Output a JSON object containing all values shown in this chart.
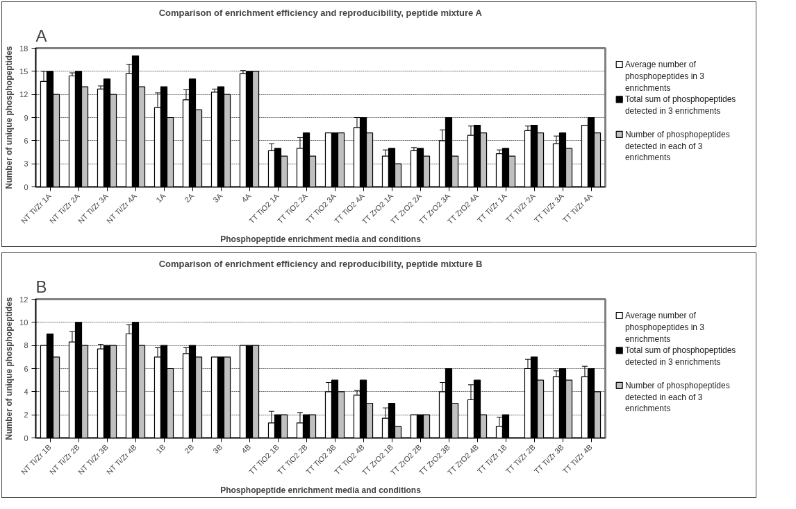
{
  "chart_data": [
    {
      "type": "bar",
      "title": "Comparison of enrichment efficiency and reproducibility, peptide mixture A",
      "xlabel": "Phosphopeptide enrichment media and conditions",
      "ylabel": "Number of unique phosphopeptides",
      "annotations": [
        "A"
      ],
      "categories": [
        "NT Ti/Zr 1A",
        "NT Ti/Zr 2A",
        "NT Ti/Zr 3A",
        "NT Ti/Zr 4A",
        "1A",
        "2A",
        "3A",
        "4A",
        "TT TiO2 1A",
        "TT TiO2 2A",
        "TT TiO2 3A",
        "TT TiO2 4A",
        "TT ZrO2 1A",
        "TT ZrO2 2A",
        "TT ZrO2 3A",
        "TT ZrO2 4A",
        "TT Ti/Zr 1A",
        "TT Ti/Zr 2A",
        "TT Ti/Zr 3A",
        "TT Ti/Zr 4A"
      ],
      "series": [
        {
          "name": "Average number of phosphopeptides in 3 enrichments",
          "color": "#ffffff",
          "values": [
            13.7,
            14.4,
            12.7,
            14.7,
            10.3,
            11.3,
            12.3,
            14.7,
            4.7,
            5.0,
            7,
            7.7,
            4.0,
            4.7,
            6.0,
            6.7,
            4.3,
            7.3,
            5.6,
            8.0
          ],
          "errors": [
            [
              13.7,
              15.0
            ],
            [
              14.4,
              14.8
            ],
            [
              12.7,
              13.1
            ],
            [
              14.7,
              15.9
            ],
            [
              10.3,
              12.2
            ],
            [
              11.3,
              12.6
            ],
            [
              12.3,
              12.7
            ],
            [
              14.7,
              15.1
            ],
            [
              4.7,
              5.6
            ],
            [
              5.0,
              6.4
            ],
            null,
            [
              7.7,
              9.0
            ],
            [
              4.0,
              4.8
            ],
            [
              4.7,
              5.1
            ],
            [
              6.0,
              7.4
            ],
            [
              6.7,
              7.9
            ],
            [
              4.3,
              4.8
            ],
            [
              7.3,
              7.9
            ],
            [
              5.6,
              6.6
            ],
            null
          ]
        },
        {
          "name": "Total sum of phosphopeptides detected in 3 enrichments",
          "color": "#000000",
          "values": [
            15,
            15,
            14,
            17,
            13,
            14,
            13,
            15,
            5,
            7,
            7,
            9,
            5,
            5,
            9,
            8,
            5,
            8,
            7,
            9
          ]
        },
        {
          "name": "Number of phosphopeptides detected in each of 3 enrichments",
          "color": "#c0c0c0",
          "values": [
            12,
            13,
            12,
            13,
            9,
            10,
            12,
            15,
            4,
            4,
            7,
            7,
            3,
            4,
            4,
            7,
            4,
            7,
            5,
            7
          ]
        }
      ],
      "ylim": [
        0,
        18
      ],
      "yticks": [
        0,
        3,
        6,
        9,
        12,
        15,
        18
      ],
      "grid": "y",
      "legend": "right"
    },
    {
      "type": "bar",
      "title": "Comparison of enrichment efficiency and reproducibility, peptide mixture B",
      "xlabel": "Phosphopeptide enrichment media and conditions",
      "ylabel": "Number of unique phosphopeptides",
      "annotations": [
        "B"
      ],
      "categories": [
        "NT Ti/Zr 1B",
        "NT Ti/Zr 2B",
        "NT Ti/Zr 3B",
        "NT Ti/Zr 4B",
        "1B",
        "2B",
        "3B",
        "4B",
        "TT TiO2 1B",
        "TT TiO2 2B",
        "TT TiO2 3B",
        "TT TiO2 4B",
        "TT ZrO2 1B",
        "TT ZrO2 2B",
        "TT ZrO2 3B",
        "TT ZrO2 4B",
        "TT Ti/Zr 1B",
        "TT Ti/Zr 2B",
        "TT Ti/Zr 3B",
        "TT Ti/Zr 4B"
      ],
      "series": [
        {
          "name": "Average number of phosphopeptides in 3 enrichments",
          "color": "#ffffff",
          "values": [
            8,
            8.3,
            7.7,
            9.0,
            7.0,
            7.3,
            7,
            8,
            1.3,
            1.3,
            4.0,
            3.7,
            1.7,
            2,
            4.0,
            3.3,
            1.0,
            6.0,
            5.3,
            5.3
          ],
          "errors": [
            null,
            [
              8.3,
              9.2
            ],
            [
              7.7,
              8.1
            ],
            [
              9.0,
              9.8
            ],
            [
              7.0,
              7.8
            ],
            [
              7.3,
              7.8
            ],
            null,
            null,
            [
              1.3,
              2.3
            ],
            [
              1.3,
              2.2
            ],
            [
              4.0,
              4.8
            ],
            [
              3.7,
              4.1
            ],
            [
              1.7,
              2.6
            ],
            null,
            [
              4.0,
              4.8
            ],
            [
              3.3,
              4.6
            ],
            [
              1.0,
              1.8
            ],
            [
              6.0,
              6.8
            ],
            [
              5.3,
              5.8
            ],
            [
              5.3,
              6.2
            ]
          ]
        },
        {
          "name": "Total sum of phosphopeptides detected in 3 enrichments",
          "color": "#000000",
          "values": [
            9,
            10,
            8,
            10,
            8,
            8,
            7,
            8,
            2,
            2,
            5,
            5,
            3,
            2,
            6,
            5,
            2,
            7,
            6,
            6
          ]
        },
        {
          "name": "Number of phosphopeptides detected in each of 3 enrichments",
          "color": "#c0c0c0",
          "values": [
            7,
            8,
            8,
            8,
            6,
            7,
            7,
            8,
            2,
            2,
            4,
            3,
            1,
            2,
            3,
            2,
            0,
            5,
            5,
            4
          ]
        }
      ],
      "ylim": [
        0,
        12
      ],
      "yticks": [
        0,
        2,
        4,
        6,
        8,
        10,
        12
      ],
      "grid": "y",
      "legend": "right"
    }
  ]
}
